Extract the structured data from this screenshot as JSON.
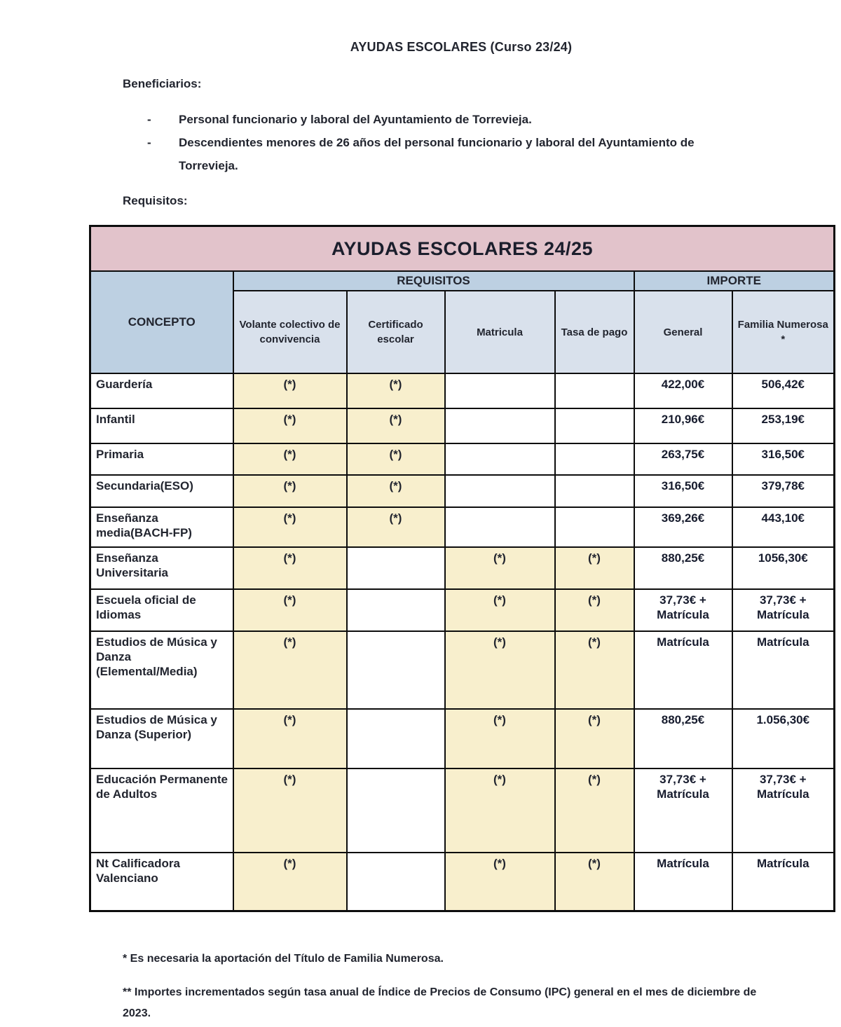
{
  "colors": {
    "banner-bg": "#e2c3cb",
    "band-bg": "#bdd0e2",
    "subhead-bg": "#d9e1ec",
    "label-bg": "#dfe7ef",
    "marked-bg": "#f8efcd"
  },
  "doc": {
    "title": "AYUDAS ESCOLARES (Curso 23/24)",
    "beneficiarios_label": "Beneficiarios:",
    "bullet": "-",
    "beneficiarios": [
      "Personal funcionario y laboral del Ayuntamiento de Torrevieja.",
      "Descendientes menores de 26 años del personal funcionario y laboral del Ayuntamiento de Torrevieja."
    ],
    "requisitos_label": "Requisitos:",
    "footnotes": [
      "* Es necesaria la aportación del Título de Familia Numerosa.",
      "** Importes incrementados según tasa anual de Índice de Precios de Consumo (IPC) general en el mes de diciembre de 2023."
    ]
  },
  "table": {
    "title": "AYUDAS ESCOLARES 24/25",
    "concepto_header": "CONCEPTO",
    "requisitos_header": "REQUISITOS",
    "importe_header": "IMPORTE",
    "sub_headers": [
      "Volante colectivo de convivencia",
      "Certificado escolar",
      "Matricula",
      "Tasa de pago",
      "General",
      "Familia Numerosa\n*"
    ],
    "rows": [
      {
        "concept": "Guardería",
        "requisitos": [
          "(*)",
          "(*)",
          "",
          ""
        ],
        "general": "422,00€",
        "familia_numerosa": "506,42€"
      },
      {
        "concept": "Infantil",
        "requisitos": [
          "(*)",
          "(*)",
          "",
          ""
        ],
        "general": "210,96€",
        "familia_numerosa": "253,19€"
      },
      {
        "concept": "Primaria",
        "requisitos": [
          "(*)",
          "(*)",
          "",
          ""
        ],
        "general": "263,75€",
        "familia_numerosa": "316,50€"
      },
      {
        "concept": "Secundaria(ESO)",
        "requisitos": [
          "(*)",
          "(*)",
          "",
          ""
        ],
        "general": "316,50€",
        "familia_numerosa": "379,78€"
      },
      {
        "concept": "Enseñanza media(BACH-FP)",
        "requisitos": [
          "(*)",
          "(*)",
          "",
          ""
        ],
        "general": "369,26€",
        "familia_numerosa": "443,10€"
      },
      {
        "concept": "Enseñanza Universitaria",
        "requisitos": [
          "(*)",
          "",
          "(*)",
          "(*)"
        ],
        "general": "880,25€",
        "familia_numerosa": "1056,30€"
      },
      {
        "concept": "Escuela oficial de Idiomas",
        "requisitos": [
          "(*)",
          "",
          "(*)",
          "(*)"
        ],
        "general": "37,73€ +\nMatrícula",
        "familia_numerosa": "37,73€ +\nMatrícula"
      },
      {
        "concept": "Estudios de Música y Danza (Elemental/Media)",
        "requisitos": [
          "(*)",
          "",
          "(*)",
          "(*)"
        ],
        "general": "Matrícula",
        "familia_numerosa": "Matrícula"
      },
      {
        "concept": "Estudios de Música y Danza (Superior)",
        "requisitos": [
          "(*)",
          "",
          "(*)",
          "(*)"
        ],
        "general": "880,25€",
        "familia_numerosa": "1.056,30€"
      },
      {
        "concept": "Educación Permanente de Adultos",
        "requisitos": [
          "(*)",
          "",
          "(*)",
          "(*)"
        ],
        "general": "37,73€ +\nMatrícula",
        "familia_numerosa": "37,73€ +\nMatrícula"
      },
      {
        "concept": "Nt Calificadora Valenciano",
        "requisitos": [
          "(*)",
          "",
          "(*)",
          "(*)"
        ],
        "general": "Matrícula",
        "familia_numerosa": "Matrícula"
      }
    ]
  }
}
